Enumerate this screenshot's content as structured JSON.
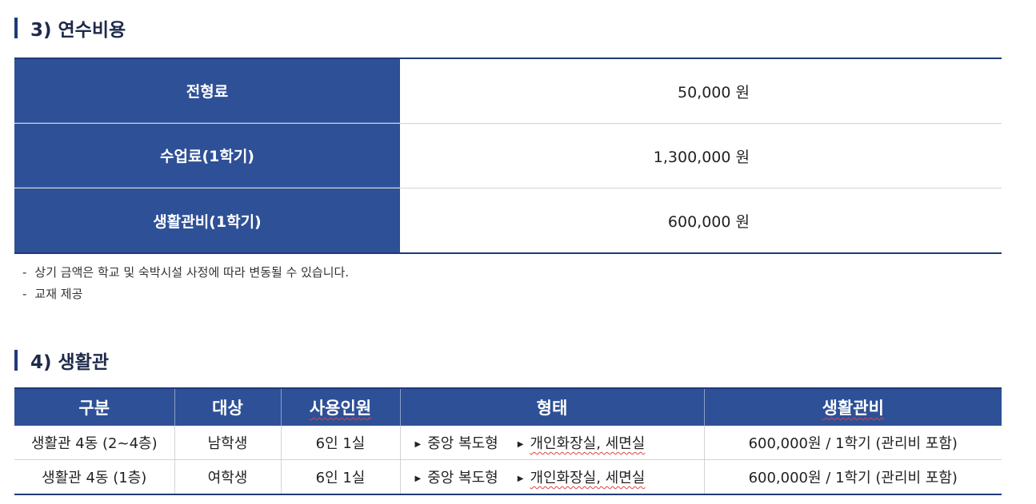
{
  "section3": {
    "title": "3) 연수비용",
    "rows": [
      {
        "label": "전형료",
        "value": "50,000 원"
      },
      {
        "label": "수업료(1학기)",
        "value": "1,300,000 원"
      },
      {
        "label": "생활관비(1학기)",
        "value": "600,000 원"
      }
    ],
    "notes": [
      "상기 금액은 학교 및 숙박시설 사정에 따라 변동될 수 있습니다.",
      "교재 제공"
    ],
    "note_marker": "-"
  },
  "section4": {
    "title": "4) 생활관",
    "headers": [
      "구분",
      "대상",
      "사용인원",
      "형태",
      "생활관비"
    ],
    "rows": [
      {
        "category": "생활관 4동 (2~4층)",
        "target": "남학생",
        "capacity": "6인 1실",
        "type_a": "중앙 복도형",
        "type_b": "개인화장실, 세면실",
        "fee": "600,000원 / 1학기 (관리비 포함)"
      },
      {
        "category": "생활관 4동 (1층)",
        "target": "여학생",
        "capacity": "6인 1실",
        "type_a": "중앙 복도형",
        "type_b": "개인화장실, 세면실",
        "fee": "600,000원  / 1학기 (관리비 포함)"
      }
    ],
    "bullet": "▶"
  },
  "colors": {
    "header_bg": "#2e5097",
    "border": "#1f3a7a"
  }
}
